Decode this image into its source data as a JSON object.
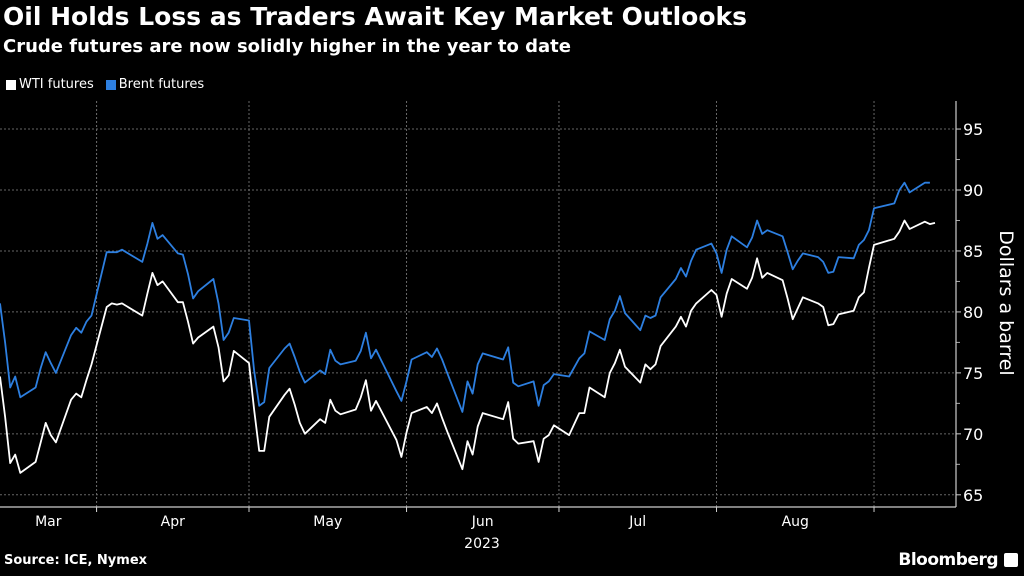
{
  "title": "Oil Holds Loss as Traders Await Key Market Outlooks",
  "subtitle": "Crude futures are now solidly higher in the year to date",
  "source": "Source: ICE, Nymex",
  "brand": "Bloomberg",
  "chart_data": {
    "type": "line",
    "title": "Oil Holds Loss as Traders Await Key Market Outlooks",
    "subtitle": "Crude futures are now solidly higher in the year to date",
    "ylabel": "Dollars a barrel",
    "xlabel": "",
    "year_label": "2023",
    "ylim": [
      64,
      97.3
    ],
    "yticks": [
      65,
      70,
      75,
      80,
      85,
      90,
      95
    ],
    "y_axis_side": "right",
    "grid": true,
    "legend_position": "top-left",
    "month_labels": [
      {
        "label": "Mar",
        "month": "2023-03"
      },
      {
        "label": "Apr",
        "month": "2023-04"
      },
      {
        "label": "May",
        "month": "2023-05"
      },
      {
        "label": "Jun",
        "month": "2023-06"
      },
      {
        "label": "Jul",
        "month": "2023-07"
      },
      {
        "label": "Aug",
        "month": "2023-08"
      }
    ],
    "x": [
      "2023-03-13",
      "2023-03-14",
      "2023-03-15",
      "2023-03-16",
      "2023-03-17",
      "2023-03-20",
      "2023-03-21",
      "2023-03-22",
      "2023-03-23",
      "2023-03-24",
      "2023-03-27",
      "2023-03-28",
      "2023-03-29",
      "2023-03-30",
      "2023-03-31",
      "2023-04-03",
      "2023-04-04",
      "2023-04-05",
      "2023-04-06",
      "2023-04-10",
      "2023-04-11",
      "2023-04-12",
      "2023-04-13",
      "2023-04-14",
      "2023-04-17",
      "2023-04-18",
      "2023-04-19",
      "2023-04-20",
      "2023-04-21",
      "2023-04-24",
      "2023-04-25",
      "2023-04-26",
      "2023-04-27",
      "2023-04-28",
      "2023-05-01",
      "2023-05-02",
      "2023-05-03",
      "2023-05-04",
      "2023-05-05",
      "2023-05-08",
      "2023-05-09",
      "2023-05-10",
      "2023-05-11",
      "2023-05-12",
      "2023-05-15",
      "2023-05-16",
      "2023-05-17",
      "2023-05-18",
      "2023-05-19",
      "2023-05-22",
      "2023-05-23",
      "2023-05-24",
      "2023-05-25",
      "2023-05-26",
      "2023-05-30",
      "2023-05-31",
      "2023-06-01",
      "2023-06-02",
      "2023-06-05",
      "2023-06-06",
      "2023-06-07",
      "2023-06-08",
      "2023-06-09",
      "2023-06-12",
      "2023-06-13",
      "2023-06-14",
      "2023-06-15",
      "2023-06-16",
      "2023-06-20",
      "2023-06-21",
      "2023-06-22",
      "2023-06-23",
      "2023-06-26",
      "2023-06-27",
      "2023-06-28",
      "2023-06-29",
      "2023-06-30",
      "2023-07-03",
      "2023-07-05",
      "2023-07-06",
      "2023-07-07",
      "2023-07-10",
      "2023-07-11",
      "2023-07-12",
      "2023-07-13",
      "2023-07-14",
      "2023-07-17",
      "2023-07-18",
      "2023-07-19",
      "2023-07-20",
      "2023-07-21",
      "2023-07-24",
      "2023-07-25",
      "2023-07-26",
      "2023-07-27",
      "2023-07-28",
      "2023-07-31",
      "2023-08-01",
      "2023-08-02",
      "2023-08-03",
      "2023-08-04",
      "2023-08-07",
      "2023-08-08",
      "2023-08-09",
      "2023-08-10",
      "2023-08-11",
      "2023-08-14",
      "2023-08-15",
      "2023-08-16",
      "2023-08-17",
      "2023-08-18",
      "2023-08-21",
      "2023-08-22",
      "2023-08-23",
      "2023-08-24",
      "2023-08-25",
      "2023-08-28",
      "2023-08-29",
      "2023-08-30",
      "2023-08-31",
      "2023-09-01",
      "2023-09-05",
      "2023-09-06",
      "2023-09-07",
      "2023-09-08",
      "2023-09-11",
      "2023-09-12",
      "2023-09-13"
    ],
    "series": [
      {
        "name": "WTI futures",
        "color": "#ffffff",
        "values": [
          74.7,
          71.4,
          67.6,
          68.3,
          66.8,
          67.7,
          69.3,
          70.9,
          69.9,
          69.3,
          72.8,
          73.3,
          73.0,
          74.4,
          75.7,
          80.4,
          80.7,
          80.6,
          80.7,
          79.7,
          81.5,
          83.2,
          82.2,
          82.5,
          80.8,
          80.8,
          79.2,
          77.4,
          77.9,
          78.8,
          77.1,
          74.3,
          74.8,
          76.8,
          75.8,
          72.0,
          68.6,
          68.6,
          71.4,
          73.2,
          73.7,
          72.4,
          70.9,
          70.0,
          71.2,
          70.9,
          72.8,
          71.9,
          71.6,
          72.0,
          73.0,
          74.4,
          71.9,
          72.7,
          69.5,
          68.1,
          70.1,
          71.7,
          72.2,
          71.7,
          72.5,
          71.3,
          70.2,
          67.1,
          69.4,
          68.3,
          70.6,
          71.7,
          71.2,
          72.6,
          69.6,
          69.2,
          69.4,
          67.7,
          69.6,
          69.9,
          70.7,
          69.9,
          71.7,
          71.7,
          73.8,
          73.0,
          75.0,
          75.8,
          76.9,
          75.5,
          74.2,
          75.7,
          75.3,
          75.7,
          77.2,
          78.8,
          79.6,
          78.8,
          80.1,
          80.7,
          81.8,
          81.4,
          79.6,
          81.5,
          82.7,
          81.9,
          82.8,
          84.4,
          82.8,
          83.2,
          82.6,
          81.1,
          79.4,
          80.3,
          81.2,
          80.7,
          80.4,
          78.9,
          79.0,
          79.8,
          80.1,
          81.2,
          81.6,
          83.6,
          85.5,
          86.0,
          86.6,
          87.5,
          86.8,
          87.4,
          87.2,
          87.3
        ]
      },
      {
        "name": "Brent futures",
        "color": "#2d7fe0",
        "values": [
          80.7,
          77.5,
          73.8,
          74.7,
          73.0,
          73.8,
          75.4,
          76.7,
          75.8,
          75.0,
          78.1,
          78.7,
          78.3,
          79.2,
          79.7,
          84.9,
          84.9,
          84.9,
          85.1,
          84.1,
          85.6,
          87.3,
          86.0,
          86.3,
          84.8,
          84.7,
          83.1,
          81.1,
          81.7,
          82.7,
          80.7,
          77.7,
          78.3,
          79.5,
          79.3,
          75.2,
          72.3,
          72.6,
          75.4,
          77.0,
          77.4,
          76.3,
          75.1,
          74.2,
          75.2,
          74.9,
          76.9,
          76.0,
          75.7,
          76.0,
          76.8,
          78.3,
          76.2,
          76.9,
          73.5,
          72.7,
          74.3,
          76.1,
          76.7,
          76.3,
          77.0,
          76.1,
          75.0,
          71.8,
          74.3,
          73.3,
          75.7,
          76.6,
          76.1,
          77.1,
          74.2,
          73.9,
          74.3,
          72.3,
          74.0,
          74.3,
          74.9,
          74.7,
          76.2,
          76.6,
          78.4,
          77.7,
          79.4,
          80.1,
          81.3,
          79.9,
          78.5,
          79.7,
          79.5,
          79.7,
          81.2,
          82.7,
          83.6,
          82.9,
          84.2,
          85.1,
          85.6,
          84.8,
          83.2,
          85.1,
          86.2,
          85.3,
          86.1,
          87.5,
          86.4,
          86.7,
          86.2,
          84.9,
          83.5,
          84.2,
          84.8,
          84.5,
          84.1,
          83.2,
          83.3,
          84.5,
          84.4,
          85.5,
          85.9,
          86.7,
          88.5,
          88.9,
          90.0,
          90.6,
          89.8,
          90.6,
          90.6,
          null
        ]
      }
    ]
  }
}
